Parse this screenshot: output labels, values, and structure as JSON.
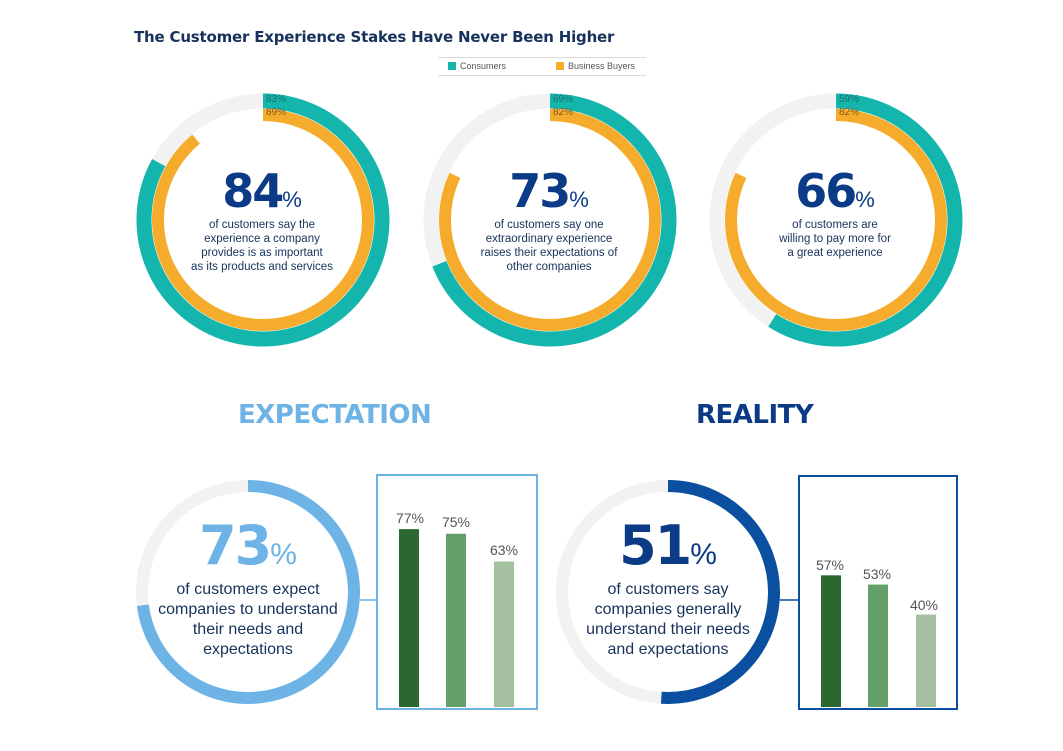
{
  "title": "The Customer Experience Stakes Have Never Been Higher",
  "legend": [
    {
      "label": "Consumers",
      "color": "#14b5ad"
    },
    {
      "label": "Business Buyers",
      "color": "#f5ac2c"
    }
  ],
  "donuts": [
    {
      "big": "84",
      "pct": "%",
      "caption": [
        "of customers say the",
        "experience a company",
        "provides is as important",
        "as its products and services"
      ],
      "consumers": "83%",
      "buyers": "89%",
      "consumers_value": 83,
      "buyers_value": 89
    },
    {
      "big": "73",
      "pct": "%",
      "caption": [
        "of customers say one",
        "extraordinary experience",
        "raises their expectations of",
        "other companies"
      ],
      "consumers": "69%",
      "buyers": "82%",
      "consumers_value": 69,
      "buyers_value": 82
    },
    {
      "big": "66",
      "pct": "%",
      "caption": [
        "of customers are",
        "willing to pay more for",
        "a great experience"
      ],
      "consumers": "59%",
      "buyers": "82%",
      "consumers_value": 59,
      "buyers_value": 82
    }
  ],
  "expectation": {
    "heading": "EXPECTATION",
    "big": "73",
    "pct": "%",
    "caption": [
      "of customers expect",
      "companies to understand",
      "their needs and",
      "expectations"
    ],
    "value": 73,
    "color": "#6eb3e6",
    "bars": [
      {
        "label": "77%",
        "value": 77,
        "color": "#2b6830"
      },
      {
        "label": "75%",
        "value": 75,
        "color": "#65a068"
      },
      {
        "label": "63%",
        "value": 63,
        "color": "#a5c0a0"
      }
    ]
  },
  "reality": {
    "heading": "REALITY",
    "big": "51",
    "pct": "%",
    "caption": [
      "of customers say",
      "companies generally",
      "understand their needs",
      "and expectations"
    ],
    "value": 51,
    "color": "#0a4fa0",
    "bars": [
      {
        "label": "57%",
        "value": 57,
        "color": "#2b6830"
      },
      {
        "label": "53%",
        "value": 53,
        "color": "#65a068"
      },
      {
        "label": "40%",
        "value": 40,
        "color": "#a5c0a0"
      }
    ]
  },
  "chart_data": [
    {
      "type": "pie",
      "series": [
        {
          "name": "Consumers",
          "values": [
            83,
            69,
            59
          ]
        },
        {
          "name": "Business Buyers",
          "values": [
            89,
            82,
            82
          ]
        }
      ],
      "categories": [
        "84%",
        "73%",
        "66%"
      ]
    },
    {
      "type": "bar",
      "title": "EXPECTATION",
      "values": [
        77,
        75,
        63
      ]
    },
    {
      "type": "bar",
      "title": "REALITY",
      "values": [
        57,
        53,
        40
      ]
    }
  ]
}
